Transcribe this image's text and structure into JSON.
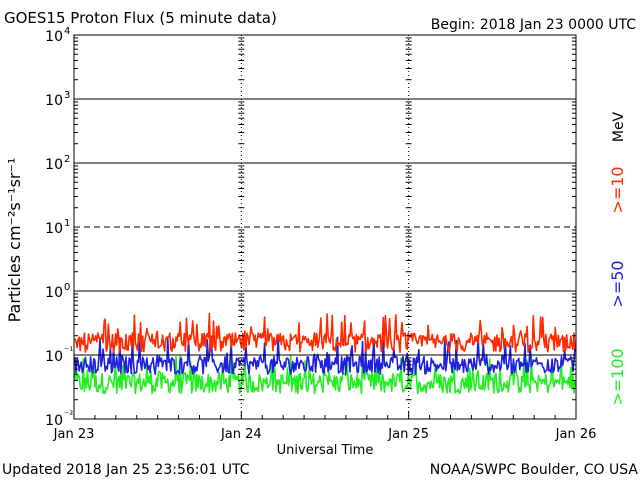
{
  "title": "GOES15 Proton Flux (5 minute data)",
  "begin": "Begin: 2018 Jan 23 0000 UTC",
  "updated": "Updated 2018 Jan 25 23:56:01 UTC",
  "credit": "NOAA/SWPC Boulder, CO USA",
  "colors": {
    "red": "#ff2a00",
    "blue": "#2020e0",
    "green": "#22ee22"
  },
  "chart_data": {
    "type": "line",
    "xlabel": "Universal Time",
    "ylabel": "Particles cm⁻²s⁻¹sr⁻¹",
    "units_label": "MeV",
    "y_scale": "log",
    "ylim": [
      0.01,
      10000
    ],
    "y_ticks": [
      {
        "base": "10",
        "exp": "4",
        "value": 10000
      },
      {
        "base": "10",
        "exp": "3",
        "value": 1000
      },
      {
        "base": "10",
        "exp": "2",
        "value": 100
      },
      {
        "base": "10",
        "exp": "1",
        "value": 10
      },
      {
        "base": "10",
        "exp": "0",
        "value": 1
      },
      {
        "base": "10",
        "exp": "⁻¹",
        "value": 0.1
      },
      {
        "base": "10",
        "exp": "⁻²",
        "value": 0.01
      }
    ],
    "x_ticks": [
      "Jan 23",
      "Jan 24",
      "Jan 25",
      "Jan 26"
    ],
    "xlim": [
      "2018-01-23",
      "2018-01-26"
    ],
    "reference_lines": [
      {
        "value": 1000,
        "style": "solid"
      },
      {
        "value": 100,
        "style": "solid"
      },
      {
        "value": 10,
        "style": "dashed"
      },
      {
        "value": 1,
        "style": "solid"
      },
      {
        "value": 0.1,
        "style": "solid"
      }
    ],
    "series": [
      {
        "name": ">=10",
        "color": "#ff2a00",
        "typical": 0.17,
        "min": 0.11,
        "max": 0.45
      },
      {
        "name": ">=50",
        "color": "#2020e0",
        "typical": 0.075,
        "min": 0.05,
        "max": 0.2
      },
      {
        "name": ">=100",
        "color": "#22ee22",
        "typical": 0.04,
        "min": 0.025,
        "max": 0.1
      }
    ]
  }
}
